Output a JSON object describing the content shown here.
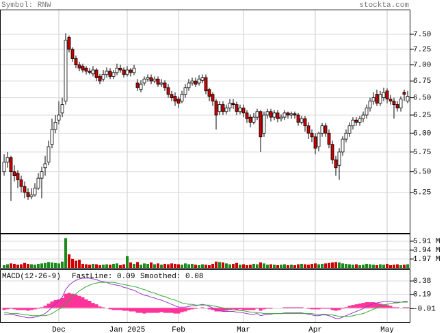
{
  "chart_data": [
    {
      "type": "candlestick",
      "title": "Symbol: RNW",
      "source": "stockta.com",
      "categories": [
        null,
        null,
        null,
        null,
        null,
        null,
        null,
        null,
        null,
        null,
        null,
        null,
        null,
        null,
        null,
        null,
        "Dec",
        null,
        null,
        null,
        null,
        null,
        null,
        null,
        null,
        null,
        null,
        null,
        null,
        null,
        null,
        null,
        null,
        null,
        null,
        null,
        "Jan 2025",
        null,
        null,
        null,
        null,
        null,
        null,
        null,
        null,
        null,
        null,
        null,
        null,
        null,
        null,
        "Feb",
        null,
        null,
        null,
        null,
        null,
        null,
        null,
        null,
        null,
        null,
        null,
        null,
        null,
        null,
        null,
        null,
        null,
        null,
        "Mar",
        null,
        null,
        null,
        null,
        null,
        null,
        null,
        null,
        null,
        null,
        null,
        null,
        null,
        null,
        null,
        null,
        null,
        null,
        null,
        null,
        "Apr",
        null,
        null,
        null,
        null,
        null,
        null,
        null,
        null,
        null,
        null,
        null,
        null,
        null,
        null,
        null,
        null,
        null,
        null,
        null,
        null,
        "May",
        null,
        null,
        null,
        null,
        null,
        null
      ],
      "open": [
        5.5,
        5.62,
        5.68,
        5.5,
        5.48,
        5.4,
        5.32,
        5.25,
        5.2,
        5.22,
        5.3,
        5.42,
        5.55,
        5.62,
        5.85,
        6.05,
        6.18,
        6.28,
        6.45,
        7.45,
        7.25,
        7.1,
        7.0,
        6.98,
        6.95,
        6.9,
        6.86,
        6.92,
        6.82,
        6.78,
        6.85,
        6.9,
        6.82,
        6.88,
        6.95,
        6.92,
        6.85,
        6.92,
        6.88,
        6.72,
        6.62,
        6.72,
        6.78,
        6.8,
        6.75,
        6.78,
        6.7,
        6.72,
        6.65,
        6.55,
        6.52,
        6.48,
        6.45,
        6.55,
        6.65,
        6.72,
        6.75,
        6.72,
        6.76,
        6.8,
        6.62,
        6.55,
        6.45,
        6.3,
        6.4,
        6.3,
        6.35,
        6.42,
        6.4,
        6.3,
        6.35,
        6.28,
        6.22,
        6.15,
        6.22,
        6.3,
        6.0,
        6.25,
        6.3,
        6.22,
        6.28,
        6.2,
        6.22,
        6.28,
        6.25,
        6.27,
        6.25,
        6.15,
        6.2,
        6.1,
        6.0,
        5.95,
        5.82,
        6.0,
        6.1,
        6.0,
        5.85,
        5.65,
        5.58,
        5.75,
        5.92,
        6.0,
        6.1,
        6.18,
        6.15,
        6.2,
        6.25,
        6.35,
        6.45,
        6.55,
        6.42,
        6.5,
        6.6,
        6.48,
        6.45,
        6.4,
        6.35,
        6.58,
        6.45
      ],
      "high": [
        5.72,
        5.75,
        5.7,
        5.58,
        5.52,
        5.45,
        5.38,
        5.3,
        5.3,
        5.36,
        5.48,
        5.56,
        5.7,
        5.9,
        6.2,
        6.25,
        6.45,
        6.5,
        7.52,
        7.48,
        7.28,
        7.15,
        7.05,
        7.02,
        6.98,
        6.95,
        6.98,
        6.95,
        6.86,
        6.92,
        6.96,
        6.95,
        6.92,
        7.02,
        7.0,
        6.96,
        6.98,
        6.95,
        7.0,
        6.78,
        6.76,
        6.82,
        6.85,
        6.85,
        6.82,
        6.82,
        6.78,
        6.76,
        6.7,
        6.6,
        6.58,
        6.52,
        6.6,
        6.7,
        6.78,
        6.8,
        6.8,
        6.84,
        6.85,
        6.85,
        6.65,
        6.58,
        6.48,
        6.45,
        6.45,
        6.4,
        6.48,
        6.48,
        6.44,
        6.4,
        6.4,
        6.32,
        6.26,
        6.28,
        6.34,
        6.32,
        6.3,
        6.34,
        6.34,
        6.32,
        6.32,
        6.26,
        6.32,
        6.3,
        6.3,
        6.3,
        6.28,
        6.24,
        6.24,
        6.15,
        6.05,
        6.0,
        6.02,
        6.14,
        6.14,
        6.05,
        5.9,
        5.7,
        5.8,
        5.96,
        6.05,
        6.15,
        6.22,
        6.22,
        6.24,
        6.3,
        6.4,
        6.5,
        6.58,
        6.62,
        6.6,
        6.65,
        6.64,
        6.54,
        6.5,
        6.45,
        6.52,
        6.62,
        6.6
      ],
      "low": [
        5.45,
        5.55,
        5.15,
        5.38,
        5.3,
        5.25,
        5.18,
        5.16,
        5.17,
        5.2,
        5.28,
        5.18,
        5.45,
        5.58,
        5.8,
        6.0,
        6.12,
        6.22,
        6.4,
        7.2,
        7.05,
        6.95,
        6.9,
        6.88,
        6.85,
        6.85,
        6.82,
        6.75,
        6.7,
        6.74,
        6.8,
        6.78,
        6.78,
        6.84,
        6.88,
        6.8,
        6.82,
        6.82,
        6.84,
        6.6,
        6.58,
        6.68,
        6.74,
        6.7,
        6.72,
        6.66,
        6.66,
        6.6,
        6.5,
        6.45,
        6.38,
        6.35,
        6.42,
        6.5,
        6.6,
        6.68,
        6.66,
        6.68,
        6.72,
        6.55,
        6.45,
        6.38,
        6.05,
        6.25,
        6.25,
        6.26,
        6.3,
        6.34,
        6.25,
        6.26,
        6.22,
        6.14,
        6.08,
        6.12,
        6.18,
        5.75,
        5.95,
        6.2,
        6.16,
        6.18,
        6.15,
        6.16,
        6.18,
        6.2,
        6.2,
        6.2,
        6.1,
        6.12,
        6.02,
        5.92,
        5.88,
        5.72,
        5.76,
        5.95,
        5.95,
        5.8,
        5.6,
        5.45,
        5.4,
        5.7,
        5.88,
        5.95,
        6.05,
        6.1,
        6.1,
        6.15,
        6.2,
        6.3,
        6.4,
        6.38,
        6.38,
        6.45,
        6.42,
        6.4,
        6.2,
        6.3,
        6.3,
        6.45,
        6.42
      ],
      "close": [
        5.62,
        5.68,
        5.5,
        5.45,
        5.4,
        5.32,
        5.25,
        5.2,
        5.22,
        5.3,
        5.42,
        5.5,
        5.6,
        5.82,
        6.05,
        6.15,
        6.25,
        6.4,
        7.4,
        7.25,
        7.1,
        7.0,
        6.95,
        6.92,
        6.9,
        6.88,
        6.92,
        6.8,
        6.75,
        6.85,
        6.9,
        6.82,
        6.88,
        6.95,
        6.92,
        6.85,
        6.92,
        6.88,
        6.95,
        6.65,
        6.7,
        6.78,
        6.8,
        6.75,
        6.78,
        6.7,
        6.72,
        6.65,
        6.55,
        6.5,
        6.45,
        6.42,
        6.55,
        6.65,
        6.72,
        6.75,
        6.7,
        6.78,
        6.8,
        6.6,
        6.52,
        6.45,
        6.25,
        6.4,
        6.3,
        6.35,
        6.42,
        6.4,
        6.3,
        6.35,
        6.28,
        6.2,
        6.15,
        6.22,
        6.3,
        5.95,
        6.25,
        6.3,
        6.22,
        6.28,
        6.2,
        6.22,
        6.28,
        6.25,
        6.27,
        6.25,
        6.15,
        6.2,
        6.1,
        6.0,
        5.95,
        5.8,
        6.0,
        6.1,
        6.0,
        5.85,
        5.65,
        5.55,
        5.75,
        5.92,
        6.0,
        6.1,
        6.18,
        6.15,
        6.2,
        6.25,
        6.35,
        6.45,
        6.5,
        6.42,
        6.55,
        6.58,
        6.48,
        6.45,
        6.4,
        6.35,
        6.48,
        6.55,
        6.52
      ],
      "up_color": "#ffffff",
      "down_color": "#cc0000",
      "ylim": [
        4.79,
        7.93
      ],
      "log_scale": true,
      "grid": true,
      "yticks": [
        {
          "value": 7.5,
          "label": "7.50"
        },
        7.25,
        {
          "value": 7.0,
          "label": "7.00"
        },
        6.75,
        {
          "value": 6.5,
          "label": "6.50"
        },
        6.25,
        {
          "value": 6.0,
          "label": "6.00"
        },
        5.75,
        {
          "value": 5.5,
          "label": "5.50"
        },
        5.25
      ]
    },
    {
      "type": "volume",
      "values": [
        0.6,
        0.8,
        1.0,
        0.9,
        0.7,
        0.8,
        1.1,
        0.9,
        0.8,
        0.7,
        0.9,
        1.0,
        1.1,
        1.3,
        1.2,
        1.1,
        1.0,
        1.4,
        6.6,
        3.0,
        2.0,
        1.6,
        1.8,
        0.9,
        0.8,
        0.7,
        0.9,
        0.8,
        0.6,
        0.7,
        0.8,
        0.7,
        0.9,
        1.0,
        0.6,
        0.8,
        2.6,
        1.2,
        0.9,
        1.3,
        0.7,
        1.0,
        0.9,
        1.2,
        0.8,
        1.0,
        0.7,
        0.9,
        0.8,
        1.0,
        0.9,
        0.8,
        0.7,
        1.0,
        0.8,
        0.9,
        0.7,
        0.6,
        0.8,
        0.7,
        0.6,
        0.9,
        1.4,
        1.3,
        1.2,
        1.0,
        0.8,
        0.9,
        1.1,
        0.7,
        0.8,
        0.6,
        0.7,
        0.9,
        0.8,
        1.2,
        1.0,
        0.7,
        0.8,
        0.7,
        0.6,
        0.7,
        0.8,
        0.6,
        0.7,
        0.6,
        0.8,
        0.9,
        0.8,
        0.7,
        0.9,
        1.0,
        0.8,
        0.9,
        1.0,
        1.1,
        1.2,
        1.3,
        1.2,
        1.0,
        0.9,
        0.8,
        0.7,
        0.8,
        0.6,
        0.7,
        0.9,
        0.8,
        0.7,
        0.6,
        0.8,
        0.7,
        0.9,
        0.6,
        0.7,
        0.8,
        0.6,
        0.7,
        0.8
      ],
      "up_color": "#1a8a1a",
      "down_color": "#cc0000",
      "ylim": [
        0,
        7.58
      ],
      "grid": true,
      "yticks": [
        {
          "value": 5.91,
          "label": "5.91 M"
        },
        {
          "value": 3.94,
          "label": "3.94 M"
        },
        {
          "value": 1.97,
          "label": "1.97 M"
        }
      ]
    },
    {
      "type": "macd",
      "title": "MACD(12-26-9)",
      "series": [
        {
          "name": "FastLine: 0.09",
          "color": "#9933cc",
          "values": [
            -0.1,
            -0.09,
            -0.09,
            -0.1,
            -0.11,
            -0.12,
            -0.13,
            -0.14,
            -0.14,
            -0.13,
            -0.12,
            -0.1,
            -0.08,
            -0.04,
            0.01,
            0.06,
            0.1,
            0.15,
            0.26,
            0.32,
            0.36,
            0.39,
            0.41,
            0.42,
            0.42,
            0.42,
            0.41,
            0.4,
            0.38,
            0.37,
            0.36,
            0.34,
            0.33,
            0.32,
            0.31,
            0.29,
            0.28,
            0.26,
            0.25,
            0.22,
            0.2,
            0.18,
            0.17,
            0.15,
            0.14,
            0.12,
            0.11,
            0.09,
            0.07,
            0.05,
            0.03,
            0.01,
            0.01,
            0.01,
            0.02,
            0.03,
            0.03,
            0.04,
            0.05,
            0.04,
            0.02,
            0.0,
            -0.03,
            -0.04,
            -0.05,
            -0.05,
            -0.05,
            -0.05,
            -0.06,
            -0.06,
            -0.07,
            -0.08,
            -0.09,
            -0.09,
            -0.08,
            -0.11,
            -0.1,
            -0.09,
            -0.09,
            -0.08,
            -0.08,
            -0.08,
            -0.07,
            -0.07,
            -0.07,
            -0.07,
            -0.07,
            -0.07,
            -0.08,
            -0.09,
            -0.1,
            -0.11,
            -0.11,
            -0.1,
            -0.1,
            -0.11,
            -0.13,
            -0.15,
            -0.15,
            -0.13,
            -0.11,
            -0.09,
            -0.07,
            -0.05,
            -0.03,
            -0.01,
            0.02,
            0.04,
            0.06,
            0.07,
            0.08,
            0.09,
            0.09,
            0.09,
            0.08,
            0.08,
            0.08,
            0.09,
            0.09
          ]
        },
        {
          "name": "Smoothed: 0.08",
          "color": "#33aa33",
          "values": [
            -0.07,
            -0.07,
            -0.08,
            -0.08,
            -0.08,
            -0.09,
            -0.1,
            -0.1,
            -0.11,
            -0.11,
            -0.11,
            -0.11,
            -0.11,
            -0.1,
            -0.08,
            -0.05,
            -0.02,
            0.01,
            0.06,
            0.11,
            0.16,
            0.2,
            0.24,
            0.27,
            0.3,
            0.32,
            0.34,
            0.35,
            0.36,
            0.36,
            0.36,
            0.36,
            0.36,
            0.35,
            0.34,
            0.33,
            0.32,
            0.31,
            0.3,
            0.29,
            0.27,
            0.26,
            0.24,
            0.22,
            0.21,
            0.19,
            0.17,
            0.16,
            0.14,
            0.12,
            0.11,
            0.09,
            0.07,
            0.06,
            0.05,
            0.05,
            0.04,
            0.04,
            0.04,
            0.04,
            0.04,
            0.03,
            0.02,
            0.01,
            0.0,
            -0.01,
            -0.02,
            -0.03,
            -0.03,
            -0.04,
            -0.04,
            -0.05,
            -0.06,
            -0.06,
            -0.07,
            -0.07,
            -0.08,
            -0.08,
            -0.08,
            -0.08,
            -0.08,
            -0.08,
            -0.08,
            -0.08,
            -0.08,
            -0.08,
            -0.08,
            -0.08,
            -0.08,
            -0.08,
            -0.08,
            -0.09,
            -0.09,
            -0.09,
            -0.09,
            -0.1,
            -0.1,
            -0.11,
            -0.12,
            -0.12,
            -0.12,
            -0.12,
            -0.11,
            -0.1,
            -0.09,
            -0.08,
            -0.06,
            -0.04,
            -0.02,
            0.0,
            0.02,
            0.04,
            0.05,
            0.06,
            0.07,
            0.07,
            0.08,
            0.08,
            0.08
          ]
        }
      ],
      "histogram": {
        "color": "#ff3399",
        "values": [
          -0.03,
          -0.02,
          -0.01,
          -0.02,
          -0.03,
          -0.03,
          -0.03,
          -0.04,
          -0.03,
          -0.02,
          -0.01,
          0.01,
          0.03,
          0.06,
          0.09,
          0.11,
          0.12,
          0.14,
          0.2,
          0.21,
          0.2,
          0.19,
          0.17,
          0.15,
          0.12,
          0.1,
          0.07,
          0.05,
          0.02,
          0.01,
          0.0,
          -0.02,
          -0.03,
          -0.03,
          -0.03,
          -0.04,
          -0.04,
          -0.05,
          -0.05,
          -0.07,
          -0.07,
          -0.08,
          -0.07,
          -0.07,
          -0.07,
          -0.07,
          -0.06,
          -0.07,
          -0.07,
          -0.07,
          -0.08,
          -0.08,
          -0.06,
          -0.05,
          -0.03,
          -0.02,
          -0.01,
          0.0,
          0.01,
          0.0,
          -0.02,
          -0.03,
          -0.05,
          -0.05,
          -0.05,
          -0.04,
          -0.03,
          -0.02,
          -0.03,
          -0.02,
          -0.03,
          -0.03,
          -0.03,
          -0.03,
          -0.01,
          -0.04,
          -0.02,
          -0.01,
          -0.01,
          0.0,
          0.0,
          0.0,
          0.01,
          0.01,
          0.01,
          0.01,
          0.01,
          0.01,
          0.0,
          -0.01,
          -0.02,
          -0.02,
          -0.02,
          -0.01,
          -0.01,
          -0.01,
          -0.03,
          -0.04,
          -0.03,
          -0.01,
          0.01,
          0.03,
          0.04,
          0.05,
          0.06,
          0.07,
          0.08,
          0.08,
          0.08,
          0.07,
          0.06,
          0.05,
          0.04,
          0.03,
          0.01,
          0.01,
          0.0,
          0.01,
          0.01
        ]
      },
      "ylim": [
        -0.2,
        0.545
      ],
      "grid": true,
      "yticks": [
        0.38,
        0.19,
        -0.01
      ]
    }
  ]
}
